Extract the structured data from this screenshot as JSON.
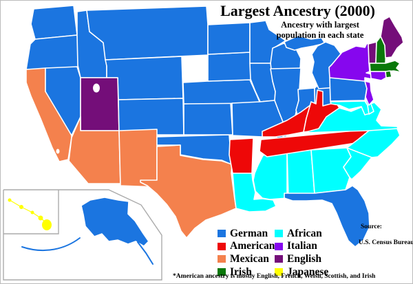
{
  "title": "Largest Ancestry (2000)",
  "subtitle_line1": "Ancestry with largest",
  "subtitle_line2": "population in each state",
  "source_label": "Source:",
  "source_value": "U.S. Census Bureau",
  "footnote": "*American ancestry is mostly English, French, Welsh, Scottish, and Irish",
  "legend": {
    "columns": [
      [
        "German",
        "American",
        "Mexican",
        "Irish"
      ],
      [
        "African",
        "Italian",
        "English",
        "Japanese"
      ]
    ]
  },
  "categories": {
    "German": "#1b75e0",
    "American": "#ee0808",
    "Mexican": "#f4814d",
    "Irish": "#0a780a",
    "African": "#00ffff",
    "Italian": "#8607ee",
    "English": "#740e79",
    "Japanese": "#ffff00"
  },
  "map": {
    "border_color": "#ffffff",
    "inset_border_color": "#aaaaaa",
    "state_ancestry": {
      "WA": "German",
      "OR": "German",
      "ID": "German",
      "MT": "German",
      "WY": "German",
      "NV": "German",
      "CO": "German",
      "ND": "German",
      "SD": "German",
      "NE": "German",
      "KS": "German",
      "OK": "German",
      "MN": "German",
      "IA": "German",
      "MO": "German",
      "WI": "German",
      "IL": "German",
      "MI": "German",
      "IN": "German",
      "OH": "German",
      "PA": "German",
      "FL": "German",
      "AK": "German",
      "KY": "American",
      "TN": "American",
      "WV": "American",
      "AR": "American",
      "CA": "Mexican",
      "AZ": "Mexican",
      "NM": "Mexican",
      "TX": "Mexican",
      "NH": "Irish",
      "MA": "Irish",
      "RI": "Irish",
      "LA": "African",
      "MS": "African",
      "AL": "African",
      "GA": "African",
      "SC": "African",
      "NC": "African",
      "VA": "African",
      "MD": "African",
      "DE": "African",
      "NY": "Italian",
      "NJ": "Italian",
      "CT": "Italian",
      "UT": "English",
      "VT": "English",
      "ME": "English",
      "HI": "Japanese"
    }
  }
}
